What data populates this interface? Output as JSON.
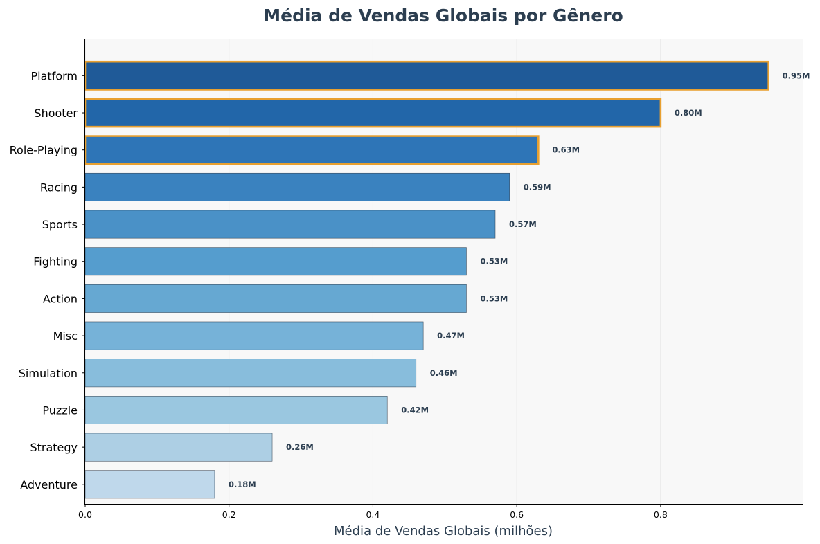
{
  "chart_data": {
    "type": "bar",
    "orientation": "horizontal",
    "title": "Média de Vendas Globais por Gênero",
    "xlabel": "Média de Vendas Globais (milhões)",
    "ylabel": "",
    "xlim": [
      0,
      0.9975
    ],
    "x_ticks": [
      0.0,
      0.2,
      0.4,
      0.6,
      0.8
    ],
    "x_tick_labels": [
      "0.0",
      "0.2",
      "0.4",
      "0.6",
      "0.8"
    ],
    "grid": "vertical",
    "categories": [
      "Platform",
      "Shooter",
      "Role-Playing",
      "Racing",
      "Sports",
      "Fighting",
      "Action",
      "Misc",
      "Simulation",
      "Puzzle",
      "Strategy",
      "Adventure"
    ],
    "values": [
      0.95,
      0.8,
      0.63,
      0.59,
      0.57,
      0.53,
      0.53,
      0.47,
      0.46,
      0.42,
      0.26,
      0.18
    ],
    "value_labels": [
      "0.95M",
      "0.80M",
      "0.63M",
      "0.59M",
      "0.57M",
      "0.53M",
      "0.53M",
      "0.47M",
      "0.46M",
      "0.42M",
      "0.26M",
      "0.18M"
    ],
    "highlighted": [
      "Platform",
      "Shooter",
      "Role-Playing"
    ],
    "bar_colors": [
      "#1f5a98",
      "#2266a9",
      "#2e75b7",
      "#3a82bf",
      "#4a91c7",
      "#559dce",
      "#66a8d2",
      "#76b2d8",
      "#88bddc",
      "#9ac7e0",
      "#adcfe4",
      "#bfd8eb"
    ],
    "highlight_color": "#e8a030",
    "axis_color": "#000000",
    "plot_background": "#f8f8f8"
  }
}
